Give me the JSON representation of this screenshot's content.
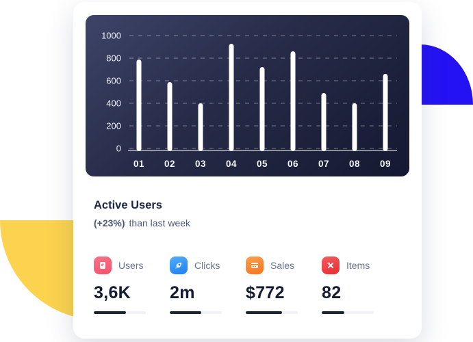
{
  "decor": {
    "yellow_semicircle_color": "#fbd34e",
    "blue_quarter_color": "#2412f5"
  },
  "chart_data": {
    "type": "bar",
    "categories": [
      "01",
      "02",
      "03",
      "04",
      "05",
      "06",
      "07",
      "08",
      "09"
    ],
    "values": [
      790,
      590,
      400,
      930,
      720,
      860,
      490,
      400,
      660
    ],
    "title": "",
    "xlabel": "",
    "ylabel": "",
    "ylim": [
      0,
      1000
    ],
    "yticks": [
      1000,
      800,
      600,
      400,
      200,
      0
    ],
    "grid": "dashed horizontal",
    "legend": "none",
    "bar_color": "#ffffff",
    "panel_colors": [
      "#3e4468",
      "#141830"
    ]
  },
  "summary": {
    "title": "Active Users",
    "delta": "(+23%)",
    "delta_suffix": "than last week"
  },
  "metrics": [
    {
      "icon": "users-document-icon",
      "icon_colors": [
        "#f9718a",
        "#f4536b"
      ],
      "label": "Users",
      "value": "3,6K",
      "progress": 62
    },
    {
      "icon": "clicks-rocket-icon",
      "icon_colors": [
        "#53aef8",
        "#1f7df4"
      ],
      "label": "Clicks",
      "value": "2m",
      "progress": 60
    },
    {
      "icon": "sales-credit-card-icon",
      "icon_colors": [
        "#faa14f",
        "#f4731e"
      ],
      "label": "Sales",
      "value": "$772",
      "progress": 70
    },
    {
      "icon": "items-tools-icon",
      "icon_colors": [
        "#f55b5e",
        "#e62c34"
      ],
      "label": "Items",
      "value": "82",
      "progress": 44
    }
  ],
  "progress_colors": {
    "track": "#f1f2f6",
    "fill": "#1c2438"
  }
}
